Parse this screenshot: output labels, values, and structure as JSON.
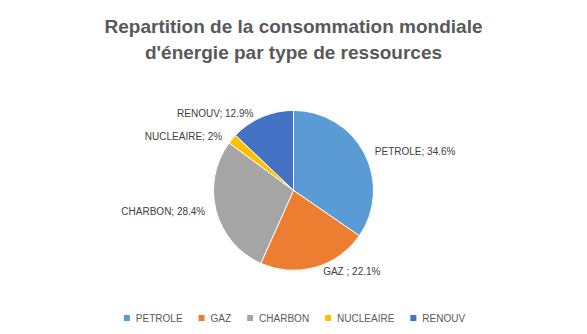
{
  "chart_data": {
    "type": "pie",
    "title": "Repartition de la consommation mondiale\nd'énergie par type de ressources",
    "categories": [
      "PETROLE",
      "GAZ",
      "CHARBON",
      "NUCLEAIRE",
      "RENOUV"
    ],
    "values": [
      34.6,
      22.1,
      28.4,
      2,
      12.9
    ],
    "value_labels": [
      "PETROLE; 34.6%",
      "GAZ ; 22.1%",
      "CHARBON; 28.4%",
      "NUCLEAIRE; 2%",
      "RENOUV; 12.9%"
    ],
    "colors": [
      "#5b9bd5",
      "#ed7d31",
      "#a5a5a5",
      "#ffc000",
      "#4472c4"
    ],
    "data_labels": true,
    "legend": "bottom"
  }
}
